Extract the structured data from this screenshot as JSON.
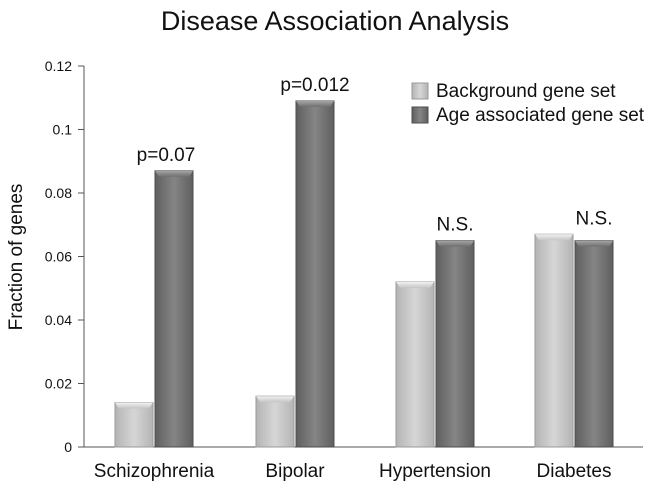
{
  "chart_data": {
    "type": "bar",
    "title": "Disease Association Analysis",
    "xlabel": "",
    "ylabel": "Fraction of genes",
    "ylim": [
      0,
      0.12
    ],
    "yticks": [
      0,
      0.02,
      0.04,
      0.06,
      0.08,
      0.1,
      0.12
    ],
    "ytick_labels": [
      "0",
      "0.02",
      "0.04",
      "0.06",
      "0.08",
      "0.1",
      "0.12"
    ],
    "categories": [
      "Schizophrenia",
      "Bipolar",
      "Hypertension",
      "Diabetes"
    ],
    "series": [
      {
        "name": "Background gene set",
        "color": "#c8c8c8",
        "values": [
          0.014,
          0.016,
          0.052,
          0.067
        ]
      },
      {
        "name": "Age associated gene set",
        "color": "#7a7a7a",
        "values": [
          0.087,
          0.109,
          0.065,
          0.065
        ]
      }
    ],
    "annotations": [
      "p=0.07",
      "p=0.012",
      "N.S.",
      "N.S."
    ],
    "legend_position": "top-right",
    "grid": false
  }
}
